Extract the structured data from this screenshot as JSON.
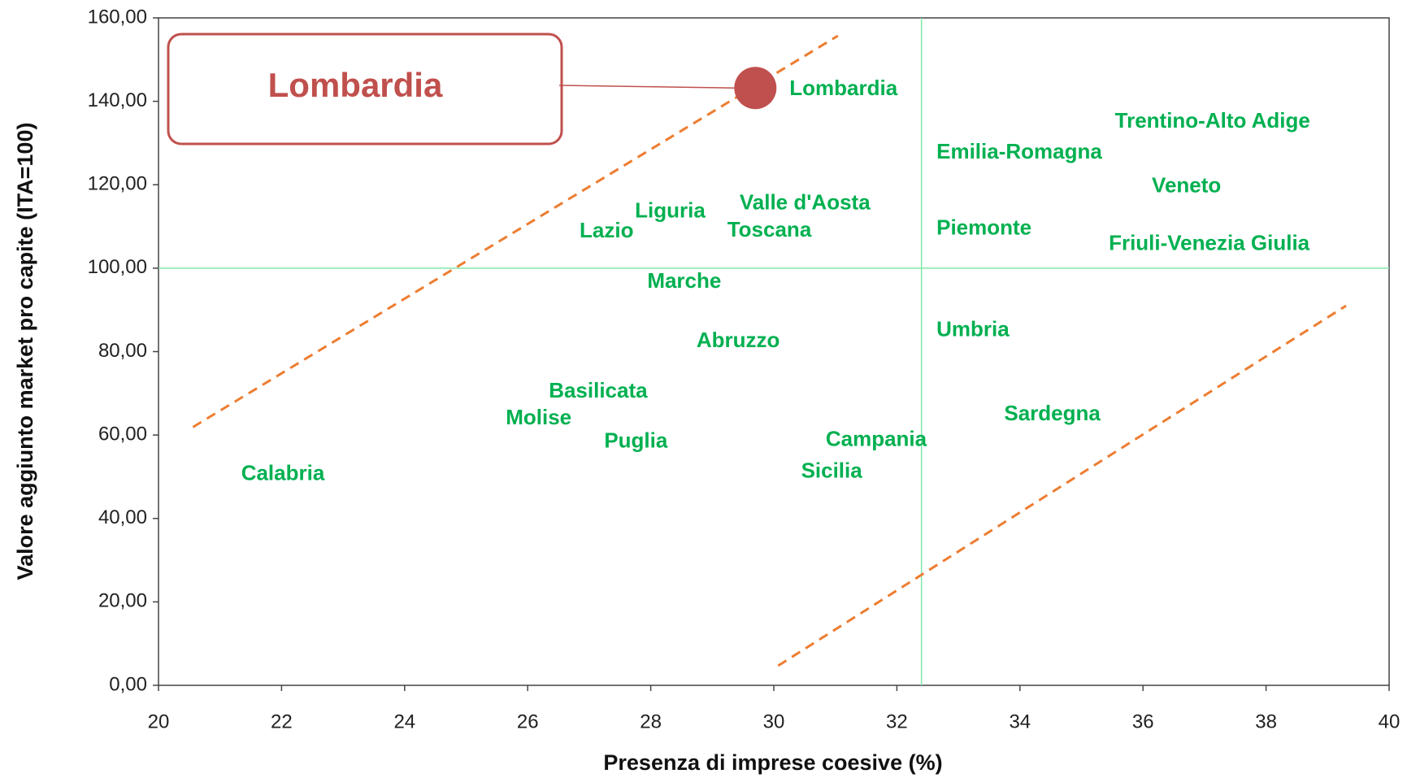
{
  "chart_data": {
    "type": "scatter",
    "x_label": "Presenza di imprese coesive (%)",
    "y_label": "Valore aggiunto market pro capite (ITA=100)",
    "annotation": "Lombardia",
    "labels": [
      "Lombardia",
      "Trentino-Alto Adige",
      "Emilia-Romagna",
      "Veneto",
      "Piemonte",
      "Friuli-Venezia Giulia",
      "Valle d'Aosta",
      "Toscana",
      "Liguria",
      "Lazio",
      "Marche",
      "Abruzzo",
      "Umbria",
      "Basilicata",
      "Molise",
      "Puglia",
      "Calabria",
      "Campania",
      "Sicilia",
      "Sardegna"
    ],
    "x": [
      29.7,
      35.2,
      32.3,
      35.8,
      32.3,
      35.1,
      29.1,
      28.9,
      27.4,
      26.5,
      27.6,
      28.4,
      32.3,
      26.0,
      25.3,
      26.9,
      21.0,
      30.5,
      30.1,
      33.4
    ],
    "values": [
      143.2,
      135.4,
      128.0,
      119.9,
      109.8,
      106.1,
      115.8,
      109.3,
      113.9,
      109.1,
      97.0,
      82.8,
      85.4,
      70.7,
      64.3,
      58.7,
      50.9,
      59.1,
      51.5,
      65.3
    ],
    "label_color": "#00b050",
    "highlight_color": "#c0504d",
    "xlim": [
      20,
      40
    ],
    "ylim": [
      0,
      160
    ],
    "xticks": [
      20,
      22,
      24,
      26,
      28,
      30,
      32,
      34,
      36,
      38,
      40
    ],
    "yticks": [
      {
        "value": 0,
        "label": "0,00"
      },
      {
        "value": 20,
        "label": "20,00"
      },
      {
        "value": 40,
        "label": "40,00"
      },
      {
        "value": 60,
        "label": "60,00"
      },
      {
        "value": 80,
        "label": "80,00"
      },
      {
        "value": 100,
        "label": "100,00"
      },
      {
        "value": 120,
        "label": "120,00"
      },
      {
        "value": 140,
        "label": "140,00"
      },
      {
        "value": 160,
        "label": "160,00"
      }
    ],
    "ref_x": 32.4,
    "ref_y": 100,
    "ref_color": "#7fe8a8",
    "trend_lines": [
      {
        "x": [
          20.56,
          31.04
        ],
        "y": [
          61.9,
          155.7
        ]
      },
      {
        "x": [
          30.07,
          39.3
        ],
        "y": [
          4.7,
          91.0
        ]
      }
    ],
    "trend_color": "#ed7d31"
  }
}
